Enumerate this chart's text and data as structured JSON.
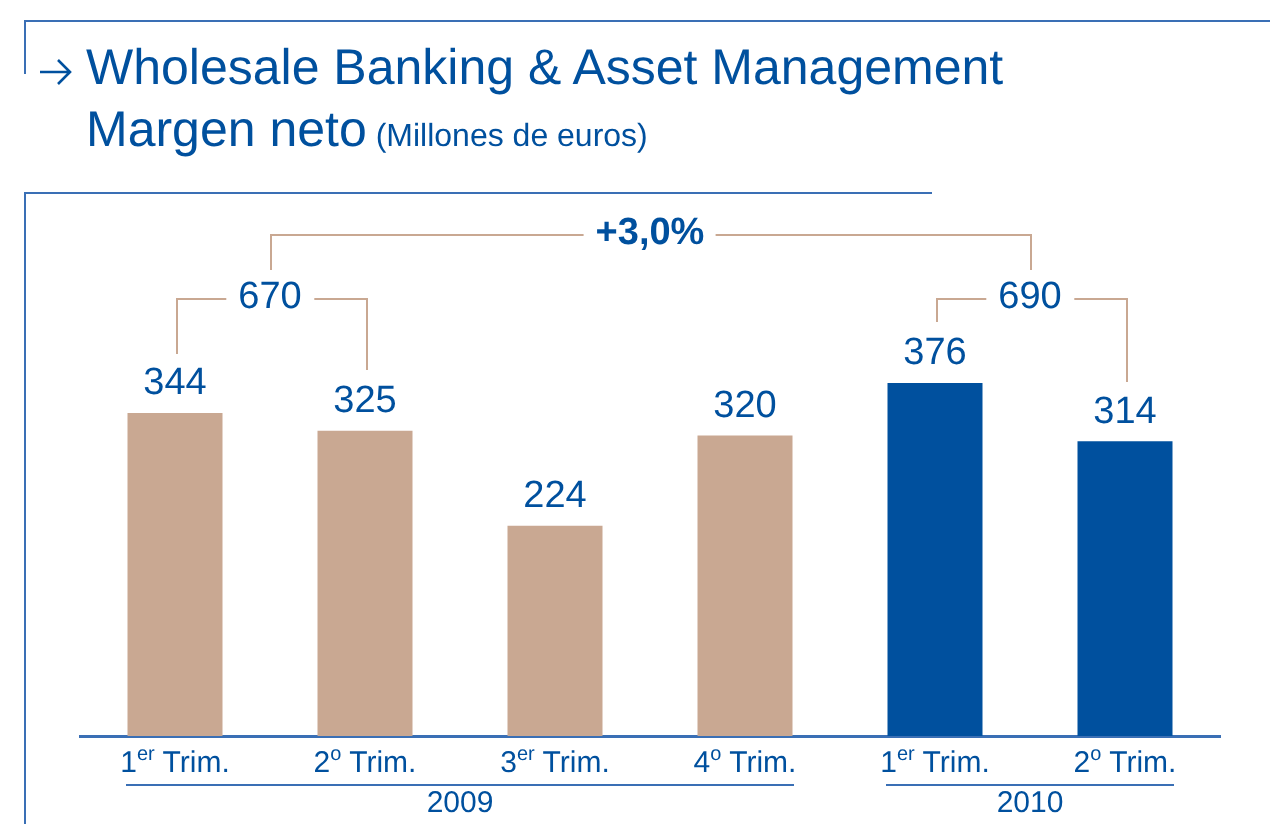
{
  "chart_data": {
    "type": "bar",
    "title": "Wholesale Banking & Asset Management",
    "subtitle": "Margen neto",
    "categories": [
      "1$^{er}$ Trim.",
      "2$^{o}$ Trim.",
      "3$^{er}$ Trim.",
      "4$^{o}$ Trim.",
      "1$^{er}$ Trim.",
      "2$^{o}$ Trim."
    ],
    "values": [
      344,
      325,
      224,
      320,
      376,
      314
    ],
    "colors": [
      "#c9a892",
      "#c9a892",
      "#c9a892",
      "#c9a892",
      "#00509e",
      "#00509e"
    ],
    "data_labels": true,
    "annotations": [
      "670",
      "690",
      "+3,0%",
      "2009",
      "2010",
      "(Millones de euros)"
    ]
  }
}
